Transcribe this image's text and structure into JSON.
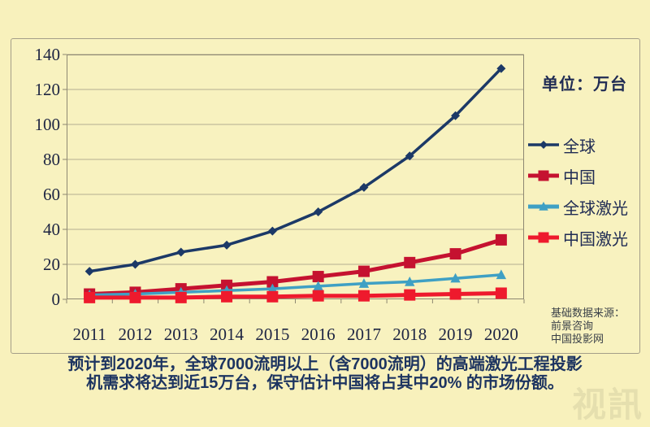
{
  "unit_label": "单位：万台",
  "source_note": {
    "lines": [
      "基础数据来源：",
      "前景咨询",
      "中国投影网"
    ]
  },
  "footer": {
    "lines": [
      "预计到2020年，全球7000流明以上（含7000流明）的高端激光工程投影",
      "机需求将达到近15万台，保守估计中国将占其中20% 的市场份额。"
    ]
  },
  "watermark": "视訊",
  "colors": {
    "background": "#F8F1BC",
    "grid": "#B5AD92",
    "axis": "#8E8872",
    "tick_text": "#1D2442",
    "label_text": "#202C54",
    "footer_text": "#1D3460"
  },
  "chart_data": {
    "type": "line",
    "x": [
      2011,
      2012,
      2013,
      2014,
      2015,
      2016,
      2017,
      2018,
      2019,
      2020
    ],
    "series": [
      {
        "name": "全球",
        "color": "#1C3967",
        "marker": "diamond",
        "line_width": 3.5,
        "values": [
          16,
          20,
          27,
          31,
          39,
          50,
          64,
          82,
          105,
          132
        ]
      },
      {
        "name": "中国",
        "color": "#C51230",
        "marker": "square",
        "line_width": 5,
        "values": [
          3,
          4,
          6,
          8,
          10,
          13,
          16,
          21,
          26,
          34
        ]
      },
      {
        "name": "全球激光",
        "color": "#3FA0C4",
        "marker": "triangle",
        "line_width": 3.5,
        "values": [
          2.5,
          3,
          4,
          5,
          6,
          7.5,
          9,
          10,
          12,
          14
        ]
      },
      {
        "name": "中国激光",
        "color": "#EE1A2D",
        "marker": "square",
        "line_width": 5,
        "values": [
          1,
          1,
          1,
          1.5,
          1.5,
          2,
          2,
          2.5,
          3,
          3.5
        ]
      }
    ],
    "title": "",
    "xlabel": "",
    "ylabel": "单位：万台",
    "ylim": [
      0,
      140
    ],
    "ytick_step": 20,
    "grid": true,
    "legend_position": "right"
  }
}
